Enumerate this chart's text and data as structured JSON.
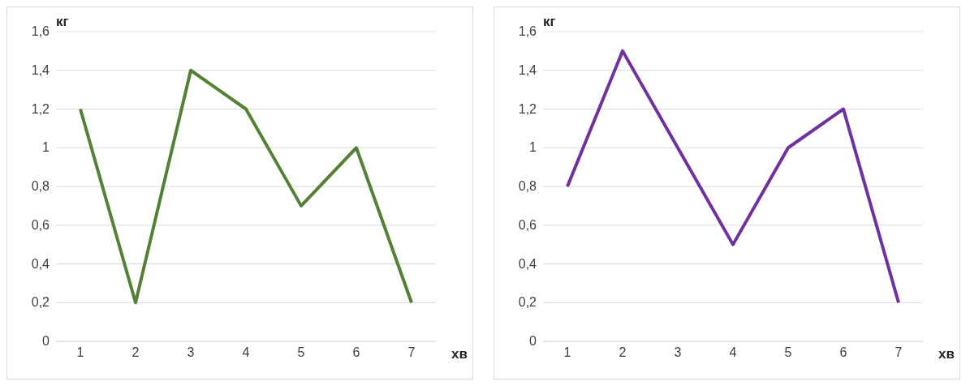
{
  "chart_data": [
    {
      "type": "line",
      "ylabel": "кг",
      "xlabel": "хв",
      "categories": [
        "1",
        "2",
        "3",
        "4",
        "5",
        "6",
        "7"
      ],
      "series": [
        {
          "color": "#548235",
          "values": [
            1.2,
            0.2,
            1.4,
            1.2,
            0.7,
            1.0,
            0.2
          ]
        }
      ],
      "ylim": [
        0,
        1.6
      ],
      "yticks": [
        {
          "value": 0,
          "label": "0"
        },
        {
          "value": 0.2,
          "label": "0,2"
        },
        {
          "value": 0.4,
          "label": "0,4"
        },
        {
          "value": 0.6,
          "label": "0,6"
        },
        {
          "value": 0.8,
          "label": "0,8"
        },
        {
          "value": 1,
          "label": "1"
        },
        {
          "value": 1.2,
          "label": "1,2"
        },
        {
          "value": 1.4,
          "label": "1,4"
        },
        {
          "value": 1.6,
          "label": "1,6"
        }
      ],
      "grid": "y",
      "legend": false,
      "marker": "none",
      "line_style": "solid"
    },
    {
      "type": "line",
      "ylabel": "кг",
      "xlabel": "хв",
      "categories": [
        "1",
        "2",
        "3",
        "4",
        "5",
        "6",
        "7"
      ],
      "series": [
        {
          "color": "#7030a0",
          "values": [
            0.8,
            1.5,
            1.0,
            0.5,
            1.0,
            1.2,
            0.2
          ]
        }
      ],
      "ylim": [
        0,
        1.6
      ],
      "yticks": [
        {
          "value": 0,
          "label": "0"
        },
        {
          "value": 0.2,
          "label": "0,2"
        },
        {
          "value": 0.4,
          "label": "0,4"
        },
        {
          "value": 0.6,
          "label": "0,6"
        },
        {
          "value": 0.8,
          "label": "0,8"
        },
        {
          "value": 1,
          "label": "1"
        },
        {
          "value": 1.2,
          "label": "1,2"
        },
        {
          "value": 1.4,
          "label": "1,4"
        },
        {
          "value": 1.6,
          "label": "1,6"
        }
      ],
      "grid": "y",
      "legend": false,
      "marker": "none",
      "line_style": "solid"
    }
  ]
}
